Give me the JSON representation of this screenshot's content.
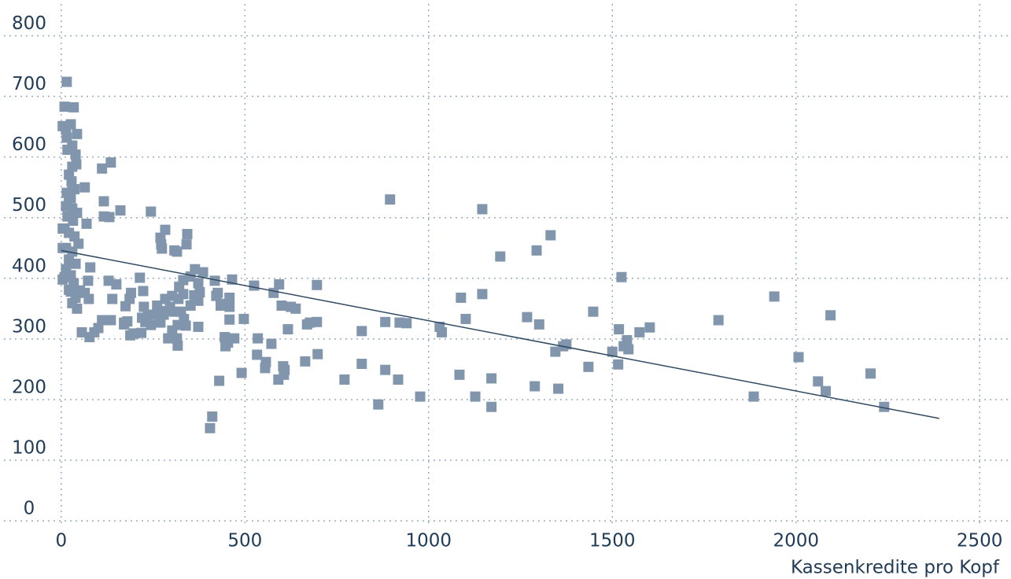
{
  "chart_data": {
    "type": "scatter",
    "x_label": "Kassenkredite pro Kopf",
    "xlim": [
      -156,
      2581
    ],
    "ylim": [
      -5,
      833
    ],
    "xticks": [
      0,
      500,
      1000,
      1500,
      2000,
      2500
    ],
    "yticks": [
      0,
      100,
      200,
      300,
      400,
      500,
      600,
      700,
      800
    ],
    "grid": true,
    "color": "#8196ad",
    "trend_line": {
      "color": "#2f4a62",
      "x": [
        0,
        2390
      ],
      "y": [
        446,
        169
      ]
    },
    "x": [
      895,
      1146,
      1195,
      1294,
      1332,
      1525,
      1088,
      1146,
      1101,
      1030,
      1036,
      1268,
      1301,
      1448,
      1375,
      1366,
      1345,
      1518,
      1602,
      1574,
      1540,
      1531,
      1544,
      1500,
      1516,
      1435,
      1084,
      1171,
      1289,
      1353,
      1127,
      1171,
      977,
      863,
      882,
      917,
      818,
      818,
      882,
      921,
      940,
      771,
      1789,
      1941,
      2007,
      2094,
      2060,
      2081,
      2203,
      2240,
      1885,
      593,
      578,
      600,
      696,
      525,
      625,
      638,
      617,
      677,
      696,
      669,
      698,
      664,
      604,
      606,
      591,
      608,
      557,
      572,
      535,
      533,
      555,
      491,
      497,
      411,
      405,
      430,
      418,
      465,
      426,
      422,
      458,
      443,
      458,
      434,
      458,
      445,
      454,
      471,
      447,
      386,
      343,
      341,
      283,
      270,
      272,
      274,
      308,
      315,
      244,
      364,
      352,
      373,
      377,
      362,
      373,
      352,
      332,
      321,
      332,
      319,
      302,
      283,
      296,
      326,
      334,
      339,
      317,
      308,
      287,
      279,
      270,
      261,
      255,
      244,
      229,
      236,
      225,
      220,
      214,
      223,
      190,
      186,
      175,
      218,
      197,
      180,
      171,
      315,
      317,
      291,
      302,
      373,
      161,
      116,
      116,
      131,
      135,
      111,
      129,
      150,
      139,
      135,
      171,
      188,
      199,
      111,
      101,
      90,
      77,
      56,
      75,
      79,
      73,
      64,
      51,
      64,
      69,
      15,
      9,
      34,
      4,
      13,
      26,
      43,
      15,
      30,
      17,
      39,
      41,
      30,
      21,
      28,
      36,
      15,
      26,
      13,
      30,
      43,
      17,
      32,
      9,
      21,
      36,
      47,
      13,
      30,
      21,
      39,
      13,
      26,
      9,
      34,
      21,
      39,
      30,
      43,
      26,
      4,
      4,
      4,
      30,
      21
    ],
    "values": [
      530,
      514,
      436,
      446,
      471,
      402,
      368,
      374,
      333,
      320,
      311,
      336,
      324,
      345,
      291,
      288,
      279,
      316,
      319,
      311,
      298,
      288,
      283,
      279,
      258,
      254,
      241,
      235,
      222,
      218,
      205,
      188,
      205,
      192,
      249,
      233,
      259,
      313,
      328,
      327,
      326,
      233,
      331,
      370,
      270,
      339,
      230,
      214,
      243,
      188,
      205,
      390,
      376,
      355,
      389,
      388,
      353,
      350,
      316,
      327,
      328,
      324,
      275,
      263,
      255,
      241,
      233,
      249,
      262,
      292,
      301,
      274,
      252,
      244,
      333,
      172,
      153,
      231,
      396,
      398,
      376,
      371,
      368,
      358,
      353,
      355,
      332,
      303,
      294,
      301,
      288,
      410,
      473,
      456,
      480,
      467,
      456,
      449,
      446,
      444,
      510,
      415,
      403,
      392,
      377,
      372,
      363,
      355,
      397,
      386,
      374,
      366,
      371,
      366,
      353,
      345,
      333,
      322,
      323,
      345,
      346,
      340,
      327,
      355,
      340,
      323,
      328,
      340,
      353,
      335,
      401,
      379,
      376,
      366,
      354,
      310,
      309,
      329,
      327,
      301,
      289,
      301,
      314,
      320,
      512,
      527,
      502,
      501,
      591,
      581,
      396,
      390,
      366,
      331,
      324,
      306,
      309,
      331,
      318,
      311,
      303,
      311,
      366,
      418,
      396,
      376,
      380,
      550,
      490,
      724,
      683,
      682,
      651,
      645,
      654,
      638,
      632,
      619,
      612,
      604,
      588,
      584,
      571,
      560,
      547,
      541,
      532,
      519,
      515,
      508,
      502,
      495,
      482,
      475,
      469,
      457,
      450,
      444,
      431,
      424,
      415,
      405,
      402,
      392,
      381,
      368,
      359,
      350,
      378,
      450,
      482,
      398,
      547,
      534
    ]
  }
}
